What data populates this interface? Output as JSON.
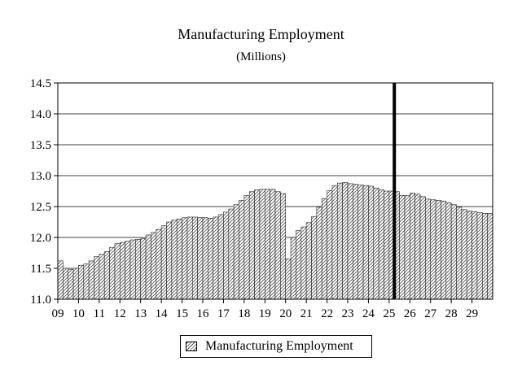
{
  "chart_data": {
    "type": "bar",
    "title": "Manufacturing Employment",
    "subtitle": "(Millions)",
    "xlabel": "",
    "ylabel": "",
    "ylim": [
      11.0,
      14.5
    ],
    "yticks": [
      "11.0",
      "11.5",
      "12.0",
      "12.5",
      "13.0",
      "13.5",
      "14.0",
      "14.5"
    ],
    "xticks": [
      "09",
      "10",
      "11",
      "12",
      "13",
      "14",
      "15",
      "16",
      "17",
      "18",
      "19",
      "20",
      "21",
      "22",
      "23",
      "24",
      "25",
      "26",
      "27",
      "28",
      "29"
    ],
    "grid": true,
    "legend_position": "bottom-center",
    "forecast_marker": {
      "value": 25.25
    },
    "series": [
      {
        "name": "Manufacturing Employment",
        "x_start": 9.0,
        "x_step": 0.25,
        "values": [
          11.62,
          11.5,
          11.48,
          11.5,
          11.55,
          11.57,
          11.62,
          11.69,
          11.73,
          11.77,
          11.84,
          11.9,
          11.92,
          11.94,
          11.96,
          11.97,
          11.98,
          12.04,
          12.08,
          12.13,
          12.19,
          12.25,
          12.28,
          12.3,
          12.32,
          12.33,
          12.33,
          12.32,
          12.32,
          12.31,
          12.33,
          12.37,
          12.41,
          12.46,
          12.53,
          12.6,
          12.68,
          12.74,
          12.77,
          12.78,
          12.78,
          12.78,
          12.74,
          12.71,
          11.65,
          12.0,
          12.11,
          12.17,
          12.24,
          12.34,
          12.49,
          12.63,
          12.76,
          12.84,
          12.88,
          12.89,
          12.87,
          12.86,
          12.85,
          12.84,
          12.83,
          12.8,
          12.77,
          12.75,
          12.75,
          12.74,
          12.68,
          12.68,
          12.72,
          12.7,
          12.66,
          12.62,
          12.61,
          12.6,
          12.59,
          12.56,
          12.53,
          12.49,
          12.45,
          12.43,
          12.42,
          12.4,
          12.39,
          12.39
        ]
      }
    ],
    "colors": {
      "bar_fill": "#ffffff",
      "bar_hatch": "#555555",
      "bar_outline": "#222222",
      "grid": "#000000",
      "marker": "#000000"
    }
  }
}
